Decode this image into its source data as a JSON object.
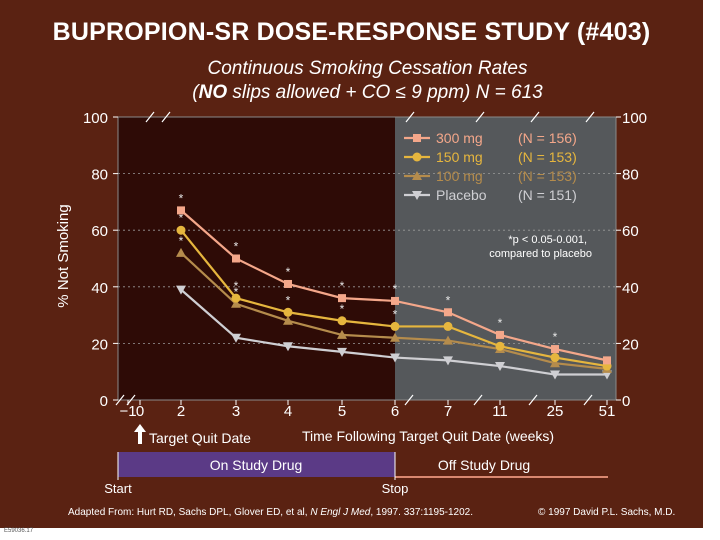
{
  "title": "BUPROPION-SR DOSE-RESPONSE STUDY (#403)",
  "subtitle_line1": "Continuous Smoking Cessation Rates",
  "subtitle_line2_open": "(",
  "subtitle_line2_no": "NO",
  "subtitle_line2_rest": " slips allowed + CO ≤ 9 ppm) N = 613",
  "colors": {
    "background": "#5a2212",
    "on_drug_region": "#2e0b06",
    "off_drug_region": "#55585b",
    "drug_bar": "#5b3a86",
    "s300": "#f4a78a",
    "s150": "#e6b63e",
    "s100": "#b58c4c",
    "placebo": "#cfcfd3"
  },
  "chart_data": {
    "type": "line",
    "title": "",
    "xlabel": "Time Following Target Quit Date (weeks)",
    "ylabel": "% Not Smoking",
    "ylim": [
      0,
      100
    ],
    "y_ticks": [
      0,
      20,
      40,
      60,
      80,
      100
    ],
    "x_ticks": [
      "−1",
      "0",
      "2",
      "3",
      "4",
      "5",
      "6",
      "7",
      "11",
      "25",
      "51"
    ],
    "x": [
      2,
      3,
      4,
      5,
      6,
      7,
      11,
      25,
      51
    ],
    "series": [
      {
        "name": "300 mg",
        "n_label": "(N = 156)",
        "marker": "square",
        "values": [
          67,
          50,
          41,
          36,
          35,
          31,
          23,
          18,
          14
        ],
        "starred": [
          true,
          true,
          true,
          true,
          true,
          true,
          true,
          true,
          false
        ]
      },
      {
        "name": "150 mg",
        "n_label": "(N = 153)",
        "marker": "circle",
        "values": [
          60,
          36,
          31,
          28,
          26,
          26,
          19,
          15,
          12
        ],
        "starred": [
          true,
          true,
          true,
          true,
          true,
          false,
          false,
          false,
          false
        ]
      },
      {
        "name": "100 mg",
        "n_label": "(N = 153)",
        "marker": "triangle-up",
        "values": [
          52,
          34,
          28,
          23,
          22,
          21,
          18,
          13,
          11
        ],
        "starred": [
          true,
          true,
          false,
          false,
          false,
          false,
          false,
          false,
          false
        ]
      },
      {
        "name": "Placebo",
        "n_label": "(N = 151)",
        "marker": "triangle-down",
        "values": [
          39,
          22,
          19,
          17,
          15,
          14,
          12,
          9,
          9
        ],
        "starred": [
          false,
          false,
          false,
          false,
          false,
          false,
          false,
          false,
          false
        ]
      }
    ],
    "legend_position": "top-right",
    "annotation_line1": "*p < 0.05-0.001,",
    "annotation_line2": "compared to placebo",
    "target_quit_label": "Target Quit Date",
    "on_drug_label": "On Study Drug",
    "off_drug_label": "Off Study Drug",
    "start_label": "Start",
    "stop_label": "Stop"
  },
  "footer": {
    "adapted": "Adapted From: Hurt RD, Sachs DPL, Glover ED, et al, ",
    "journal": "N Engl J Med",
    "citation": ", 1997. 337:1195-1202.",
    "copyright": "© 1997 David P.L. Sachs, M.D.",
    "code": "E59036.17"
  }
}
